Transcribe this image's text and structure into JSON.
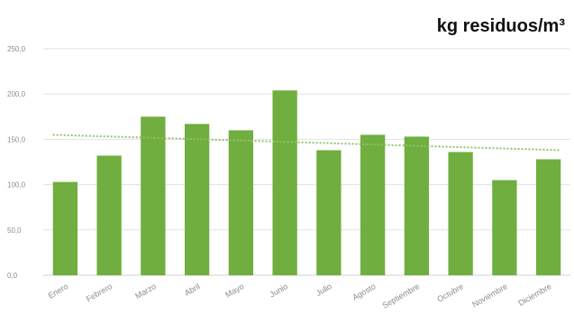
{
  "chart_data": {
    "type": "bar",
    "title": "kg residuos/m³",
    "xlabel": "",
    "ylabel": "",
    "categories": [
      "Enero",
      "Febrero",
      "Marzo",
      "Abril",
      "Mayo",
      "Junio",
      "Julio",
      "Agosto",
      "Septiembre",
      "Octubre",
      "Noviembre",
      "Diciembre"
    ],
    "values": [
      103,
      132,
      175,
      167,
      160,
      204,
      138,
      155,
      153,
      136,
      105,
      128
    ],
    "ylim": [
      0,
      250
    ],
    "yticks": [
      "0,0",
      "50,0",
      "100,0",
      "150,0",
      "200,0",
      "250,0"
    ],
    "trendline": {
      "style": "dotted",
      "start": 155,
      "end": 138
    },
    "grid": true,
    "legend": "none",
    "colors": {
      "bar": "#6fae3f",
      "grid": "#e2e2e2",
      "trendline": "#93c26a",
      "ticks": "#8c8c8c"
    }
  }
}
